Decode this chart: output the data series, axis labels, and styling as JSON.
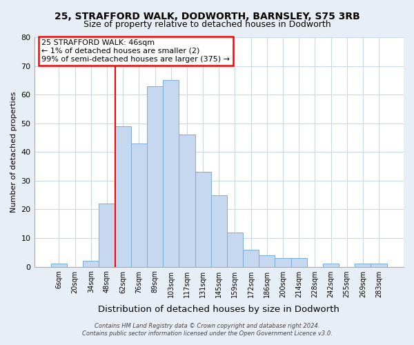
{
  "title": "25, STRAFFORD WALK, DODWORTH, BARNSLEY, S75 3RB",
  "subtitle": "Size of property relative to detached houses in Dodworth",
  "xlabel": "Distribution of detached houses by size in Dodworth",
  "ylabel": "Number of detached properties",
  "bar_labels": [
    "6sqm",
    "20sqm",
    "34sqm",
    "48sqm",
    "62sqm",
    "76sqm",
    "89sqm",
    "103sqm",
    "117sqm",
    "131sqm",
    "145sqm",
    "159sqm",
    "172sqm",
    "186sqm",
    "200sqm",
    "214sqm",
    "228sqm",
    "242sqm",
    "255sqm",
    "269sqm",
    "283sqm"
  ],
  "bar_values": [
    1,
    0,
    2,
    22,
    49,
    43,
    63,
    65,
    46,
    33,
    25,
    12,
    6,
    4,
    3,
    3,
    0,
    1,
    0,
    1,
    1
  ],
  "bar_color": "#c5d8ef",
  "bar_edgecolor": "#7aadd4",
  "vline_x": 3.5,
  "vline_color": "red",
  "ylim": [
    0,
    80
  ],
  "yticks": [
    0,
    10,
    20,
    30,
    40,
    50,
    60,
    70,
    80
  ],
  "annotation_title": "25 STRAFFORD WALK: 46sqm",
  "annotation_line1": "← 1% of detached houses are smaller (2)",
  "annotation_line2": "99% of semi-detached houses are larger (375) →",
  "footer1": "Contains HM Land Registry data © Crown copyright and database right 2024.",
  "footer2": "Contains public sector information licensed under the Open Government Licence v3.0.",
  "fig_bg_color": "#e8eef5",
  "plot_bg_color": "#ffffff",
  "grid_color": "#c8d8e8"
}
